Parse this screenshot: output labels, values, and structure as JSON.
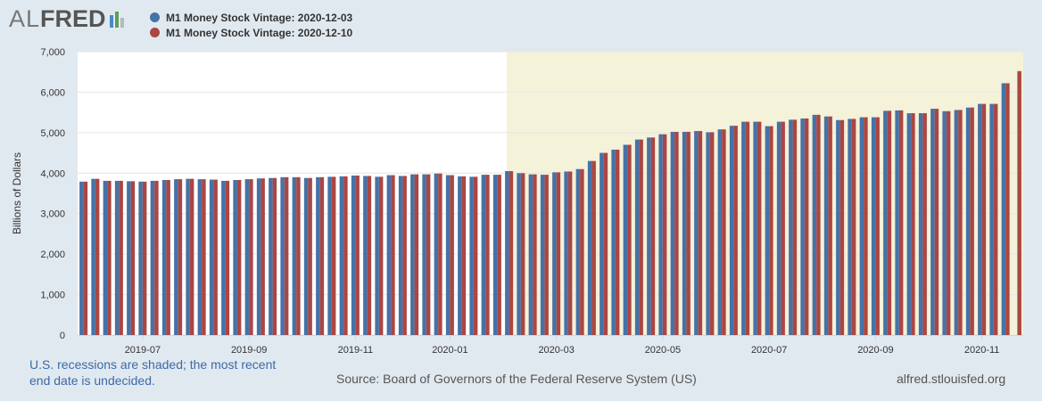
{
  "logo": {
    "part1": "AL",
    "part2": "FRED",
    "icon_colors": [
      "#4a8ac8",
      "#5ba05b",
      "#b8b8b8"
    ]
  },
  "colors": {
    "series1": "#4572a7",
    "series2": "#aa4643",
    "recession": "#f4f2d9",
    "plot_bg": "#ffffff"
  },
  "footer": {
    "note_line1": "U.S. recessions are shaded; the most recent",
    "note_line2": "end date is undecided.",
    "source": "Source: Board of Governors of the Federal Reserve System (US)",
    "site": "alfred.stlouisfed.org"
  },
  "chart_data": {
    "type": "bar",
    "ylabel": "Billions of Dollars",
    "ylim": [
      0,
      7000
    ],
    "yticks": [
      0,
      1000,
      2000,
      3000,
      4000,
      5000,
      6000,
      7000
    ],
    "ytick_labels": [
      "0",
      "1,000",
      "2,000",
      "3,000",
      "4,000",
      "5,000",
      "6,000",
      "7,000"
    ],
    "xtick_labels": [
      {
        "label": "2019-07",
        "index": 5
      },
      {
        "label": "2019-09",
        "index": 14
      },
      {
        "label": "2019-11",
        "index": 23
      },
      {
        "label": "2020-01",
        "index": 31
      },
      {
        "label": "2020-03",
        "index": 40
      },
      {
        "label": "2020-05",
        "index": 49
      },
      {
        "label": "2020-07",
        "index": 58
      },
      {
        "label": "2020-09",
        "index": 67
      },
      {
        "label": "2020-11",
        "index": 76
      }
    ],
    "recession_start_index": 36.3,
    "series": [
      {
        "name": "M1 Money Stock Vintage: 2020-12-03",
        "values": [
          3790,
          3860,
          3810,
          3810,
          3800,
          3790,
          3810,
          3830,
          3850,
          3860,
          3850,
          3840,
          3810,
          3830,
          3850,
          3870,
          3880,
          3900,
          3900,
          3880,
          3900,
          3910,
          3920,
          3940,
          3930,
          3910,
          3950,
          3930,
          3970,
          3970,
          3990,
          3950,
          3920,
          3910,
          3960,
          3960,
          4050,
          4000,
          3970,
          3960,
          4020,
          4040,
          4100,
          4300,
          4500,
          4580,
          4700,
          4830,
          4880,
          4960,
          5020,
          5020,
          5040,
          5010,
          5080,
          5170,
          5270,
          5270,
          5160,
          5270,
          5320,
          5350,
          5440,
          5400,
          5310,
          5340,
          5380,
          5380,
          5540,
          5550,
          5480,
          5480,
          5590,
          5530,
          5560,
          5620,
          5710,
          5710,
          6220
        ],
        "color": "#4572a7"
      },
      {
        "name": "M1 Money Stock Vintage: 2020-12-10",
        "values": [
          3790,
          3860,
          3810,
          3810,
          3800,
          3790,
          3810,
          3830,
          3850,
          3860,
          3850,
          3840,
          3810,
          3830,
          3850,
          3870,
          3880,
          3900,
          3900,
          3880,
          3900,
          3910,
          3920,
          3940,
          3930,
          3910,
          3950,
          3930,
          3970,
          3970,
          3990,
          3950,
          3920,
          3910,
          3960,
          3960,
          4050,
          4000,
          3970,
          3960,
          4020,
          4040,
          4100,
          4300,
          4500,
          4580,
          4700,
          4830,
          4880,
          4960,
          5020,
          5020,
          5040,
          5010,
          5080,
          5170,
          5270,
          5270,
          5160,
          5270,
          5320,
          5350,
          5440,
          5400,
          5310,
          5340,
          5380,
          5380,
          5540,
          5550,
          5480,
          5480,
          5590,
          5530,
          5560,
          5620,
          5710,
          5710,
          6220,
          6520
        ],
        "color": "#aa4643"
      }
    ]
  }
}
